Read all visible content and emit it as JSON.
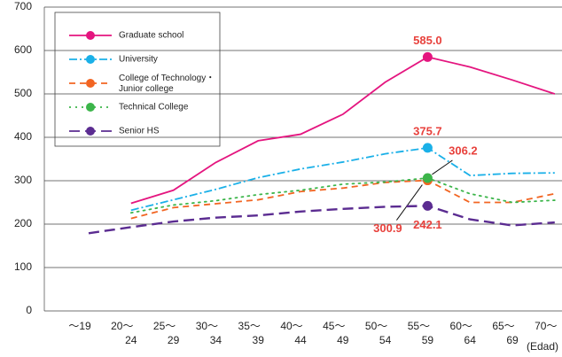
{
  "chart_data": {
    "type": "line",
    "categories": [
      "～19",
      "20～",
      "25～",
      "30～",
      "35～",
      "40～",
      "45～",
      "50～",
      "55～",
      "60～",
      "65～",
      "70～"
    ],
    "x_sublabels": [
      null,
      "24",
      "29",
      "34",
      "39",
      "44",
      "49",
      "54",
      "59",
      "64",
      "69",
      null
    ],
    "x_unit_label": "(Edad)",
    "ylim": [
      0,
      700
    ],
    "yticks": [
      0,
      100,
      200,
      300,
      400,
      500,
      600,
      700
    ],
    "grid": true,
    "series": [
      {
        "name": "Graduate school",
        "color": "#e4157f",
        "dash": "solid",
        "values": [
          null,
          248,
          278,
          342,
          392,
          407,
          453,
          527,
          585,
          562,
          532,
          500
        ],
        "value_labels": [
          null,
          null,
          null,
          null,
          null,
          null,
          null,
          null,
          "585.0",
          null,
          null,
          null
        ]
      },
      {
        "name": "University",
        "color": "#1ab0e8",
        "dash": "dashdot",
        "values": [
          null,
          232,
          256,
          280,
          307,
          327,
          343,
          362,
          375.7,
          312,
          317,
          318
        ],
        "value_labels": [
          null,
          null,
          null,
          null,
          null,
          null,
          null,
          null,
          "375.7",
          null,
          null,
          null
        ]
      },
      {
        "name": "College of Technology・Junior college",
        "color": "#f26522",
        "dash": "dashed",
        "values": [
          null,
          213,
          238,
          247,
          256,
          275,
          283,
          296,
          300.9,
          250,
          250,
          270
        ],
        "value_labels": [
          null,
          null,
          null,
          null,
          null,
          null,
          null,
          null,
          "300.9",
          null,
          null,
          null
        ]
      },
      {
        "name": "Technical College",
        "color": "#3cb54a",
        "dash": "dotted",
        "values": [
          null,
          226,
          244,
          254,
          268,
          278,
          292,
          297,
          306.2,
          270,
          250,
          255
        ],
        "value_labels": [
          null,
          null,
          null,
          null,
          null,
          null,
          null,
          null,
          "306.2",
          null,
          null,
          null
        ]
      },
      {
        "name": "Senior HS",
        "color": "#5b2c91",
        "dash": "longdash",
        "values": [
          179,
          193,
          206,
          215,
          220,
          229,
          235,
          240,
          242.1,
          211,
          197,
          204
        ],
        "value_labels": [
          null,
          null,
          null,
          null,
          null,
          null,
          null,
          null,
          "242.1",
          null,
          null,
          null
        ]
      }
    ]
  }
}
